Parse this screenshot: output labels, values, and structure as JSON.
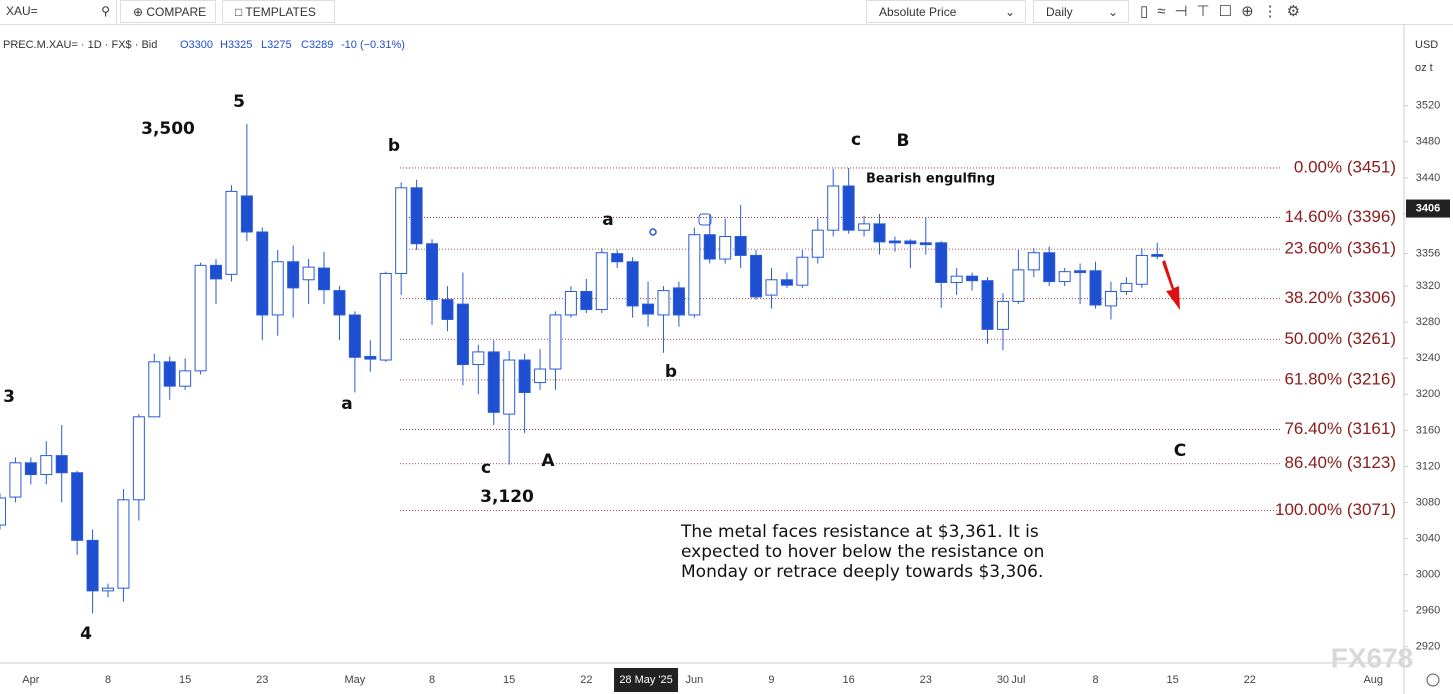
{
  "toolbar": {
    "symbol": "XAU=",
    "compare": "COMPARE",
    "templates": "TEMPLATES",
    "price_mode": "Absolute Price",
    "interval": "Daily"
  },
  "header": {
    "instrument": "PREC.M.XAU= · 1D · FX$ · Bid",
    "ohlc": [
      "O3300",
      "H3325",
      "L3275",
      "C3289"
    ],
    "change": "-10 (−0.31%)"
  },
  "axis_units": [
    "USD",
    "oz t"
  ],
  "watermark": "FX678",
  "chart_data": {
    "type": "candlestick",
    "categories": [
      null,
      null,
      "Apr",
      null,
      null,
      null,
      null,
      "8",
      null,
      null,
      null,
      null,
      "15",
      null,
      null,
      null,
      null,
      "23",
      null,
      null,
      null,
      null,
      null,
      "May",
      null,
      null,
      null,
      null,
      "8",
      null,
      null,
      null,
      null,
      "15",
      null,
      null,
      null,
      null,
      "22",
      null,
      null,
      null,
      "28 May '25",
      null,
      null,
      "Jun",
      null,
      null,
      null,
      null,
      "9",
      null,
      null,
      null,
      null,
      "16",
      null,
      null,
      null,
      null,
      "23",
      null,
      null,
      null,
      null,
      "30",
      "Jul",
      null,
      null,
      null,
      null,
      "8",
      null,
      null,
      null,
      null,
      "15",
      null,
      null,
      null,
      null,
      "22",
      null,
      null,
      null,
      null,
      null,
      null,
      null,
      "Aug"
    ],
    "open": [
      3055,
      3086,
      3124,
      3111,
      3132,
      3113,
      3038,
      2982,
      2985,
      3083,
      3175,
      3236,
      3209,
      3226,
      3343,
      3333,
      3420,
      3380,
      3288,
      3347,
      3327,
      3340,
      3315,
      3288,
      3242,
      3238,
      3334,
      3429,
      3367,
      3305,
      3300,
      3233,
      3247,
      3178,
      3238,
      3213,
      3228,
      3288,
      3314,
      3294,
      3356,
      3347,
      3300,
      3288,
      3318,
      3288,
      3377,
      3350,
      3375,
      3354,
      3310,
      3327,
      3321,
      3352,
      3382,
      3431,
      3382,
      3389,
      3370,
      3370,
      3368,
      3368,
      3324,
      3331,
      3326,
      3272,
      3303,
      3338,
      3357,
      3325,
      3337,
      3337,
      3298,
      3314,
      3322,
      3355,
      null,
      null,
      null,
      null,
      null,
      null,
      null,
      null,
      null,
      null,
      null,
      null,
      null,
      null
    ],
    "high": [
      3090,
      3130,
      3130,
      3148,
      3166,
      3115,
      3050,
      2990,
      3095,
      3178,
      3245,
      3242,
      3240,
      3346,
      3350,
      3432,
      3500,
      3385,
      3360,
      3365,
      3350,
      3358,
      3320,
      3292,
      3260,
      3336,
      3435,
      3438,
      3372,
      3320,
      3335,
      3255,
      3260,
      3248,
      3245,
      3250,
      3292,
      3320,
      3328,
      3362,
      3360,
      3352,
      3325,
      3320,
      3325,
      3385,
      3400,
      3395,
      3410,
      3360,
      3340,
      3335,
      3360,
      3395,
      3450,
      3451,
      3398,
      3400,
      3375,
      3372,
      3396,
      3370,
      3340,
      3335,
      3330,
      3312,
      3360,
      3362,
      3364,
      3340,
      3345,
      3347,
      3325,
      3330,
      3362,
      3368,
      null,
      null,
      null,
      null,
      null,
      null,
      null,
      null,
      null,
      null,
      null,
      null,
      null,
      null
    ],
    "low": [
      3050,
      3080,
      3100,
      3100,
      3080,
      3022,
      2957,
      2975,
      2970,
      3060,
      3175,
      3194,
      3205,
      3222,
      3300,
      3325,
      3370,
      3260,
      3265,
      3285,
      3300,
      3300,
      3260,
      3202,
      3225,
      3236,
      3310,
      3360,
      3277,
      3270,
      3210,
      3200,
      3166,
      3122,
      3157,
      3205,
      3205,
      3285,
      3290,
      3290,
      3340,
      3285,
      3275,
      3246,
      3275,
      3285,
      3345,
      3345,
      3340,
      3305,
      3295,
      3318,
      3318,
      3345,
      3375,
      3378,
      3375,
      3355,
      3358,
      3340,
      3355,
      3296,
      3310,
      3315,
      3256,
      3249,
      3300,
      3330,
      3320,
      3320,
      3300,
      3295,
      3283,
      3310,
      3318,
      3350,
      null,
      null,
      null,
      null,
      null,
      null,
      null,
      null,
      null,
      null,
      null,
      null,
      null,
      null
    ],
    "close": [
      3085,
      3124,
      3111,
      3132,
      3113,
      3038,
      2982,
      2985,
      3083,
      3175,
      3236,
      3209,
      3226,
      3343,
      3328,
      3425,
      3380,
      3288,
      3347,
      3318,
      3341,
      3316,
      3288,
      3241,
      3239,
      3334,
      3429,
      3367,
      3305,
      3283,
      3233,
      3247,
      3180,
      3238,
      3202,
      3228,
      3288,
      3314,
      3294,
      3357,
      3347,
      3298,
      3289,
      3315,
      3288,
      3377,
      3350,
      3375,
      3354,
      3308,
      3327,
      3321,
      3352,
      3382,
      3431,
      3382,
      3389,
      3369,
      3368,
      3367,
      3366,
      3324,
      3331,
      3326,
      3272,
      3303,
      3338,
      3357,
      3325,
      3336,
      3335,
      3299,
      3314,
      3323,
      3354,
      3353,
      null,
      null,
      null,
      null,
      null,
      null,
      null,
      null,
      null,
      null,
      null,
      null,
      null,
      null
    ],
    "up_color": "#ffffff",
    "down_color": "#1f4fd1",
    "ylim": [
      2902,
      3604
    ],
    "yticks": [
      2920,
      2960,
      3000,
      3040,
      3080,
      3120,
      3160,
      3200,
      3240,
      3280,
      3320,
      3356,
      3400,
      3440,
      3480,
      3520
    ],
    "grid": false,
    "price_marker": 3406,
    "levels": [
      {
        "label": "0.00% (3451)",
        "value": 3451
      },
      {
        "label": "14.60% (3396)",
        "value": 3396
      },
      {
        "label": "23.60% (3361)",
        "value": 3361
      },
      {
        "label": "38.20% (3306)",
        "value": 3306
      },
      {
        "label": "50.00% (3261)",
        "value": 3261
      },
      {
        "label": "61.80% (3216)",
        "value": 3216
      },
      {
        "label": "76.40% (3161)",
        "value": 3161
      },
      {
        "label": "86.40% (3123)",
        "value": 3123
      },
      {
        "label": "100.00% (3071)",
        "value": 3071
      }
    ],
    "level_color": "#8b1c1c",
    "annotations": [
      "3",
      "4",
      "3,500",
      "5",
      "a",
      "b",
      "c",
      "3,120",
      "A",
      "a",
      "b",
      "c",
      "B",
      "Bearish engulfing",
      "C"
    ],
    "note": [
      "The metal faces resistance at $3,361. It is",
      "expected to hover below the resistance on",
      "Monday or retrace deeply towards $3,306."
    ]
  }
}
